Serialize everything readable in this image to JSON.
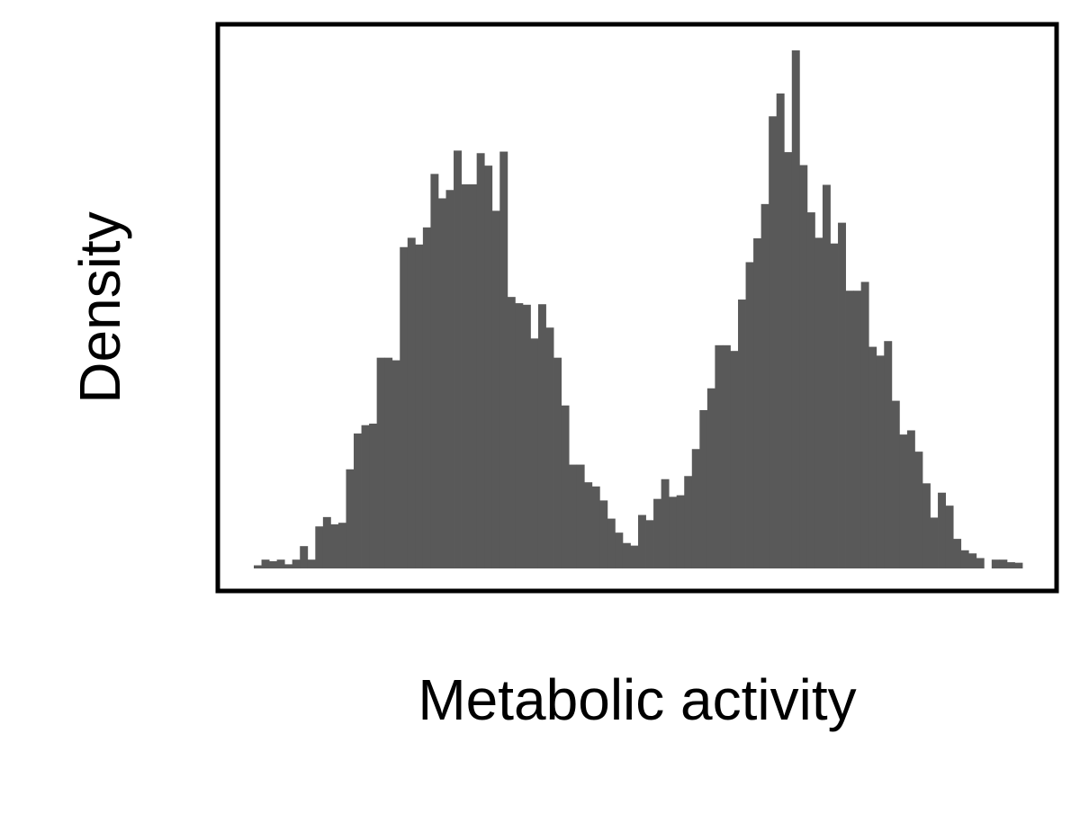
{
  "chart_data": {
    "type": "bar",
    "subtype": "histogram",
    "title": "",
    "xlabel": "Metabolic activity",
    "ylabel": "Density",
    "x_ticks_visible": false,
    "y_ticks_visible": false,
    "grid": false,
    "legend": "none",
    "bar_color": "#595959",
    "frame_color": "#000000",
    "ylim": [
      0,
      1.05
    ],
    "bin_count": 100,
    "values": [
      0.006,
      0.017,
      0.014,
      0.017,
      0.008,
      0.017,
      0.043,
      0.017,
      0.081,
      0.099,
      0.085,
      0.088,
      0.191,
      0.26,
      0.276,
      0.279,
      0.406,
      0.406,
      0.401,
      0.619,
      0.637,
      0.624,
      0.657,
      0.76,
      0.713,
      0.729,
      0.805,
      0.74,
      0.74,
      0.8,
      0.776,
      0.689,
      0.803,
      0.523,
      0.511,
      0.508,
      0.443,
      0.509,
      0.464,
      0.406,
      0.314,
      0.2,
      0.2,
      0.166,
      0.158,
      0.131,
      0.096,
      0.069,
      0.049,
      0.044,
      0.103,
      0.093,
      0.134,
      0.172,
      0.138,
      0.141,
      0.178,
      0.23,
      0.305,
      0.347,
      0.43,
      0.43,
      0.419,
      0.518,
      0.59,
      0.636,
      0.702,
      0.871,
      0.915,
      0.802,
      0.998,
      0.777,
      0.686,
      0.637,
      0.739,
      0.626,
      0.666,
      0.535,
      0.535,
      0.552,
      0.427,
      0.41,
      0.438,
      0.323,
      0.258,
      0.266,
      0.225,
      0.164,
      0.098,
      0.146,
      0.121,
      0.057,
      0.035,
      0.029,
      0.02,
      0.0,
      0.017,
      0.017,
      0.012,
      0.011
    ]
  }
}
